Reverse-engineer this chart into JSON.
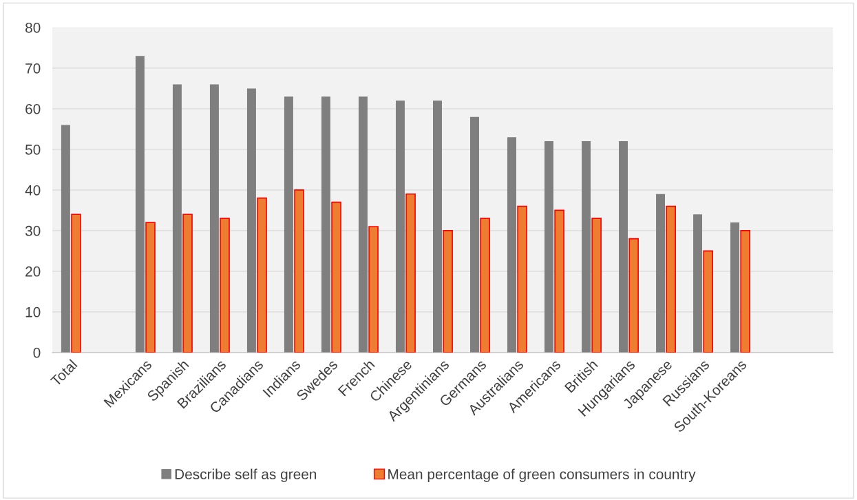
{
  "chart_data": {
    "type": "bar",
    "categories": [
      "Total",
      null,
      "Mexicans",
      "Spanish",
      "Brazilians",
      "Canadians",
      "Indians",
      "Swedes",
      "French",
      "Chinese",
      "Argentinians",
      "Germans",
      "Australians",
      "Americans",
      "British",
      "Hungarians",
      "Japanese",
      "Russians",
      "South-Koreans",
      null,
      null
    ],
    "series": [
      {
        "name": "Describe self as green",
        "color": "#7f7f7f",
        "values": [
          56,
          null,
          73,
          66,
          66,
          65,
          63,
          63,
          63,
          62,
          62,
          58,
          53,
          52,
          52,
          52,
          39,
          34,
          32,
          null,
          null
        ]
      },
      {
        "name": "Mean percentage of green consumers in country",
        "color": "#ed7d31",
        "values": [
          34,
          null,
          32,
          34,
          33,
          38,
          40,
          37,
          31,
          39,
          30,
          33,
          36,
          35,
          33,
          28,
          36,
          25,
          30,
          null,
          null
        ]
      }
    ],
    "ylim": [
      0,
      80
    ],
    "yticks": [
      0,
      10,
      20,
      30,
      40,
      50,
      60,
      70,
      80
    ],
    "grid": "y",
    "legend": "bottom"
  }
}
